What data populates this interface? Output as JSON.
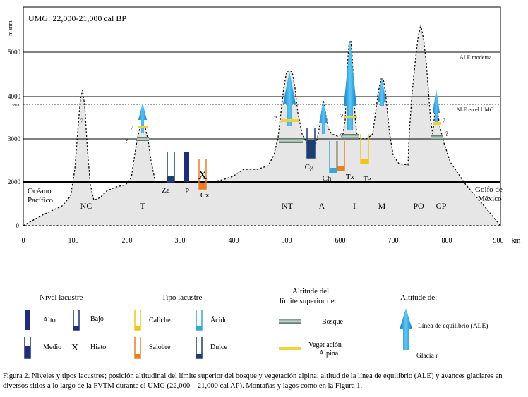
{
  "title": "UMG: 22,000-21,000  cal BP",
  "y_axis_label": "m snm",
  "y_ticks": [
    "0",
    "2000",
    "3000",
    "3800",
    "4000",
    "5000"
  ],
  "x_ticks": [
    "0",
    "100",
    "200",
    "300",
    "400",
    "500",
    "600",
    "700",
    "800",
    "900"
  ],
  "x_unit": "km",
  "ale_lines": {
    "modern": "ALE moderna",
    "lgm": "ALE en el UMG"
  },
  "sea_left": {
    "line1": "Océano",
    "line2": "Pacífico"
  },
  "sea_right": {
    "line1": "Golfo de",
    "line2": "México"
  },
  "mountains": [
    "NC",
    "T",
    "NT",
    "A",
    "I",
    "M",
    "PO",
    "CP"
  ],
  "lakes": [
    "Za",
    "P",
    "Cz",
    "Cg",
    "Ch",
    "Tx",
    "Te"
  ],
  "unknown_mark": "?",
  "hiatus_mark": "X",
  "legend": {
    "lake_level": {
      "title": "Nivel lacustre",
      "alto": "Alto",
      "bajo": "Bajo",
      "medio": "Medio",
      "hiato": "Hiato"
    },
    "lake_type": {
      "title": "Tipo lacustre",
      "caliche": "Caliche",
      "acido": "Ácido",
      "salobre": "Salobre",
      "dulce": "Dulce"
    },
    "upper_limit": {
      "title1": "Altitude del",
      "title2": "límite superior  de:",
      "bosque": "Bosque",
      "veg1": "Veget ación",
      "veg2": "Alpina"
    },
    "altitude": {
      "title": "Altitude de:",
      "ale": "Línea  de equilibrio (ALE)",
      "glaciar": "Glacia r"
    }
  },
  "caption": "Figura 2. Niveles y tipos lacustres; posición altitudinal del límite superior del bosque y vegetación alpina; altitud de la línea de equilibrio (ALE) y avances glaciares en diversos sitios a lo largo de la FVTM durante el UMG (22,000 – 21,000 cal AP). Montañas y lagos como en la Figura 1.",
  "colors": {
    "terrain": "#e6e6e6",
    "ice": "#1a96dc",
    "forest": "#6f8f7f",
    "alpine": "#f2d23a",
    "alto": "#1f2d7a",
    "caliche": "#f2c518",
    "acido": "#35a8d8",
    "salobre": "#ee7d22",
    "dulce": "#1b3f6e"
  }
}
